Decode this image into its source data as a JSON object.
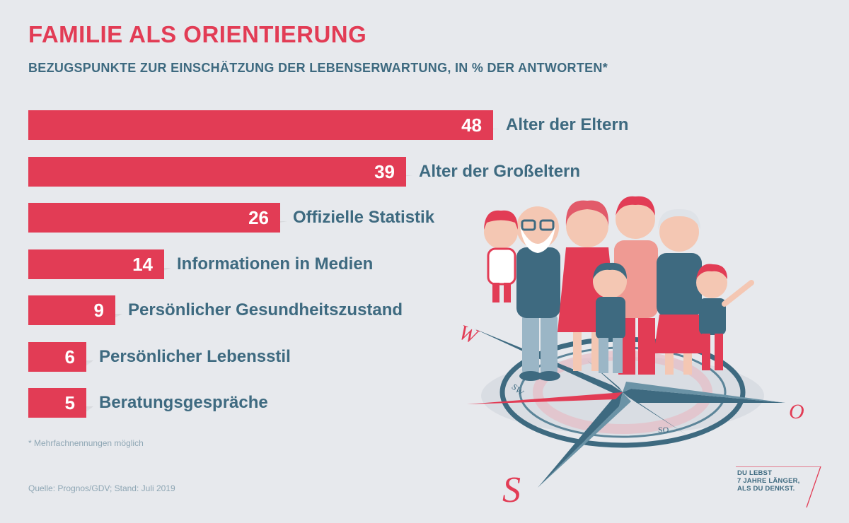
{
  "header": {
    "title": "FAMILIE ALS ORIENTIERUNG",
    "subtitle": "BEZUGSPUNKTE ZUR EINSCHÄTZUNG DER LEBENSERWARTUNG, IN % DER ANTWORTEN*"
  },
  "chart_data": {
    "type": "bar",
    "orientation": "horizontal",
    "categories": [
      "Alter der Eltern",
      "Alter der Großeltern",
      "Offizielle Statistik",
      "Informationen in Medien",
      "Persönlicher Gesundheitszustand",
      "Persönlicher Lebensstil",
      "Beratungsgespräche"
    ],
    "values": [
      48,
      39,
      26,
      14,
      9,
      6,
      5
    ],
    "title": "FAMILIE ALS ORIENTIERUNG",
    "subtitle": "BEZUGSPUNKTE ZUR EINSCHÄTZUNG DER LEBENSERWARTUNG, IN % DER ANTWORTEN*",
    "xlim": [
      0,
      48
    ],
    "grid": false,
    "data_labels": true
  },
  "footer": {
    "footnote": "* Mehrfachnennungen möglich",
    "source": "Quelle: Prognos/GDV; Stand: Juli 2019"
  },
  "compass": {
    "labels": [
      "W",
      "O",
      "S",
      "SW",
      "SO"
    ]
  },
  "brand": {
    "lines": [
      "DU LEBST",
      "7 JAHRE LÄNGER,",
      "ALS DU DENKST."
    ]
  },
  "colors": {
    "bar": "#e23c55",
    "accent_text": "#3e6a80",
    "background": "#e7e9ed"
  }
}
